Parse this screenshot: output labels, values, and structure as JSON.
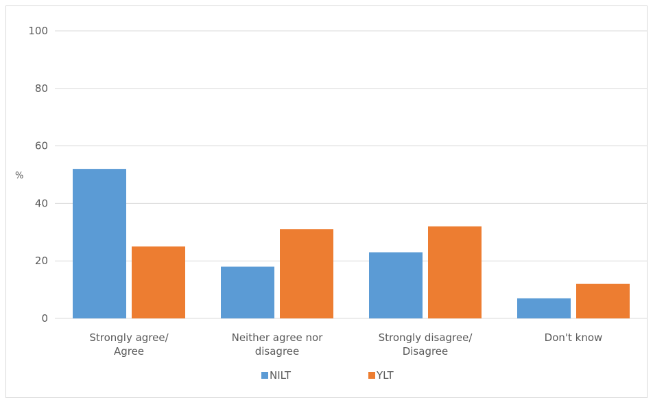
{
  "chart_data": {
    "type": "bar",
    "categories": [
      [
        "Strongly agree/",
        "Agree"
      ],
      [
        "Neither agree nor",
        "disagree"
      ],
      [
        "Strongly disagree/",
        "Disagree"
      ],
      [
        "Don't know"
      ]
    ],
    "series": [
      {
        "name": "NILT",
        "color": "#5b9bd5",
        "values": [
          52,
          18,
          23,
          7
        ]
      },
      {
        "name": "YLT",
        "color": "#ed7d31",
        "values": [
          25,
          31,
          32,
          12
        ]
      }
    ],
    "ylabel": "%",
    "ylim": [
      0,
      100
    ],
    "yticks": [
      0,
      20,
      40,
      60,
      80,
      100
    ],
    "grid": true,
    "legend": "bottom-center"
  }
}
